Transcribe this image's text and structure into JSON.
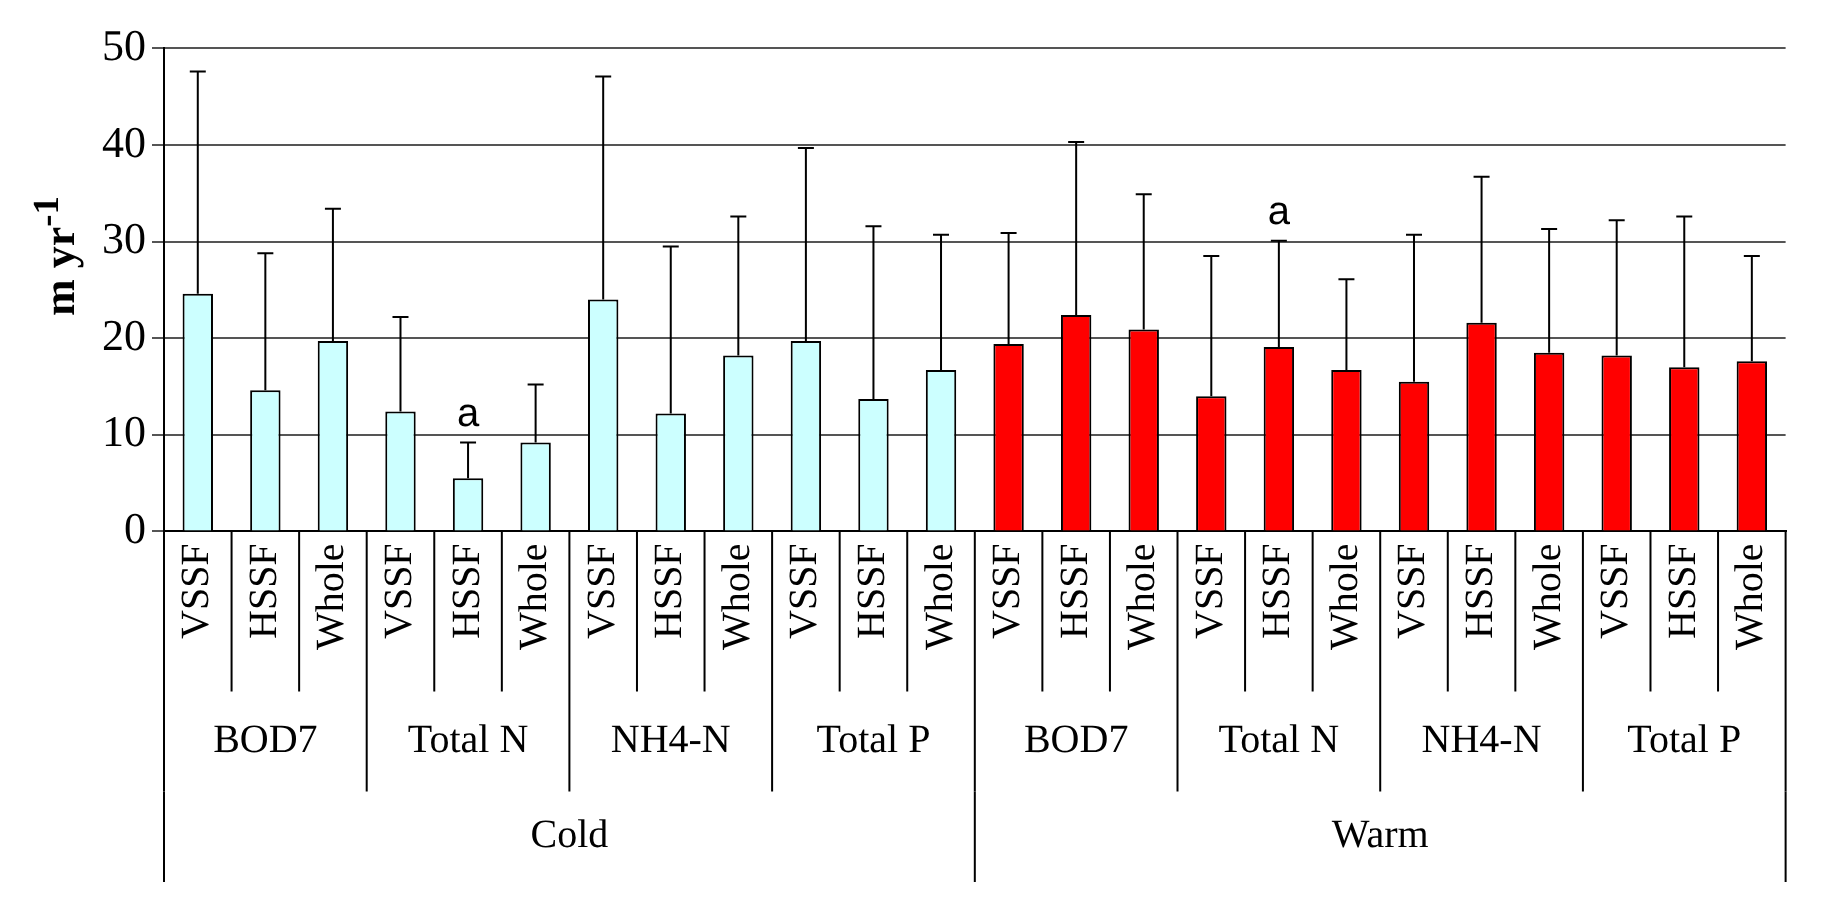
{
  "chart_data": {
    "type": "bar",
    "ylabel": "m yr$^{-1}$",
    "categories": [
      "VSSF",
      "HSSF",
      "Whole",
      "VSSF",
      "HSSF",
      "Whole",
      "VSSF",
      "HSSF",
      "Whole",
      "VSSF",
      "HSSF",
      "Whole",
      "VSSF",
      "HSSF",
      "Whole",
      "VSSF",
      "HSSF",
      "Whole",
      "VSSF",
      "HSSF",
      "Whole",
      "VSSF",
      "HSSF",
      "Whole"
    ],
    "series": [
      {
        "color": "#ccffff",
        "values": [
          24.6,
          14.6,
          19.7,
          12.4,
          5.5,
          9.2,
          24.0,
          12.2,
          18.2,
          19.7,
          13.7,
          16.7,
          null,
          null,
          null,
          null,
          null,
          null,
          null,
          null,
          null,
          null,
          null,
          null
        ],
        "errors": [
          [
            24.6,
            47.6
          ],
          [
            14.6,
            28.8
          ],
          [
            19.7,
            33.4
          ],
          [
            12.4,
            22.2
          ],
          [
            5.5,
            9.2
          ],
          [
            9.2,
            15.2
          ],
          [
            24.0,
            47.1
          ],
          [
            12.2,
            29.5
          ],
          [
            18.2,
            32.6
          ],
          [
            19.7,
            39.7
          ],
          [
            13.7,
            31.6
          ],
          [
            16.7,
            30.7
          ],
          null,
          null,
          null,
          null,
          null,
          null,
          null,
          null,
          null,
          null,
          null,
          null
        ],
        "value_labels": [
          null,
          null,
          null,
          null,
          "a",
          null,
          null,
          null,
          null,
          null,
          null,
          null,
          null,
          null,
          null,
          null,
          null,
          null,
          null,
          null,
          null,
          null,
          null,
          null
        ]
      },
      {
        "color": "#ff0000",
        "values": [
          null,
          null,
          null,
          null,
          null,
          null,
          null,
          null,
          null,
          null,
          null,
          null,
          19.4,
          22.4,
          20.9,
          14.0,
          19.1,
          16.7,
          15.5,
          21.6,
          18.5,
          18.2,
          17.0,
          17.6
        ],
        "errors": [
          null,
          null,
          null,
          null,
          null,
          null,
          null,
          null,
          null,
          null,
          null,
          null,
          [
            19.4,
            30.9
          ],
          [
            22.4,
            40.3
          ],
          [
            20.9,
            34.9
          ],
          [
            14.0,
            28.5
          ],
          [
            19.1,
            30.1
          ],
          [
            16.7,
            26.1
          ],
          [
            15.5,
            30.7
          ],
          [
            21.6,
            36.7
          ],
          [
            18.5,
            31.3
          ],
          [
            18.2,
            32.2
          ],
          [
            17.0,
            32.6
          ],
          [
            17.6,
            28.5
          ]
        ],
        "value_labels": [
          null,
          null,
          null,
          null,
          null,
          null,
          null,
          null,
          null,
          null,
          null,
          null,
          null,
          null,
          null,
          null,
          "a",
          null,
          null,
          null,
          null,
          null,
          null,
          null
        ]
      }
    ],
    "annotations": [
      "BOD7",
      "Total N",
      "NH4-N",
      "Total P",
      "BOD7",
      "Total N",
      "NH4-N",
      "Total P",
      "Cold",
      "Warm"
    ],
    "ylim": [
      0,
      50
    ],
    "yticks": [
      0,
      10,
      20,
      30,
      40,
      50
    ],
    "grid": "y",
    "legend": false
  }
}
